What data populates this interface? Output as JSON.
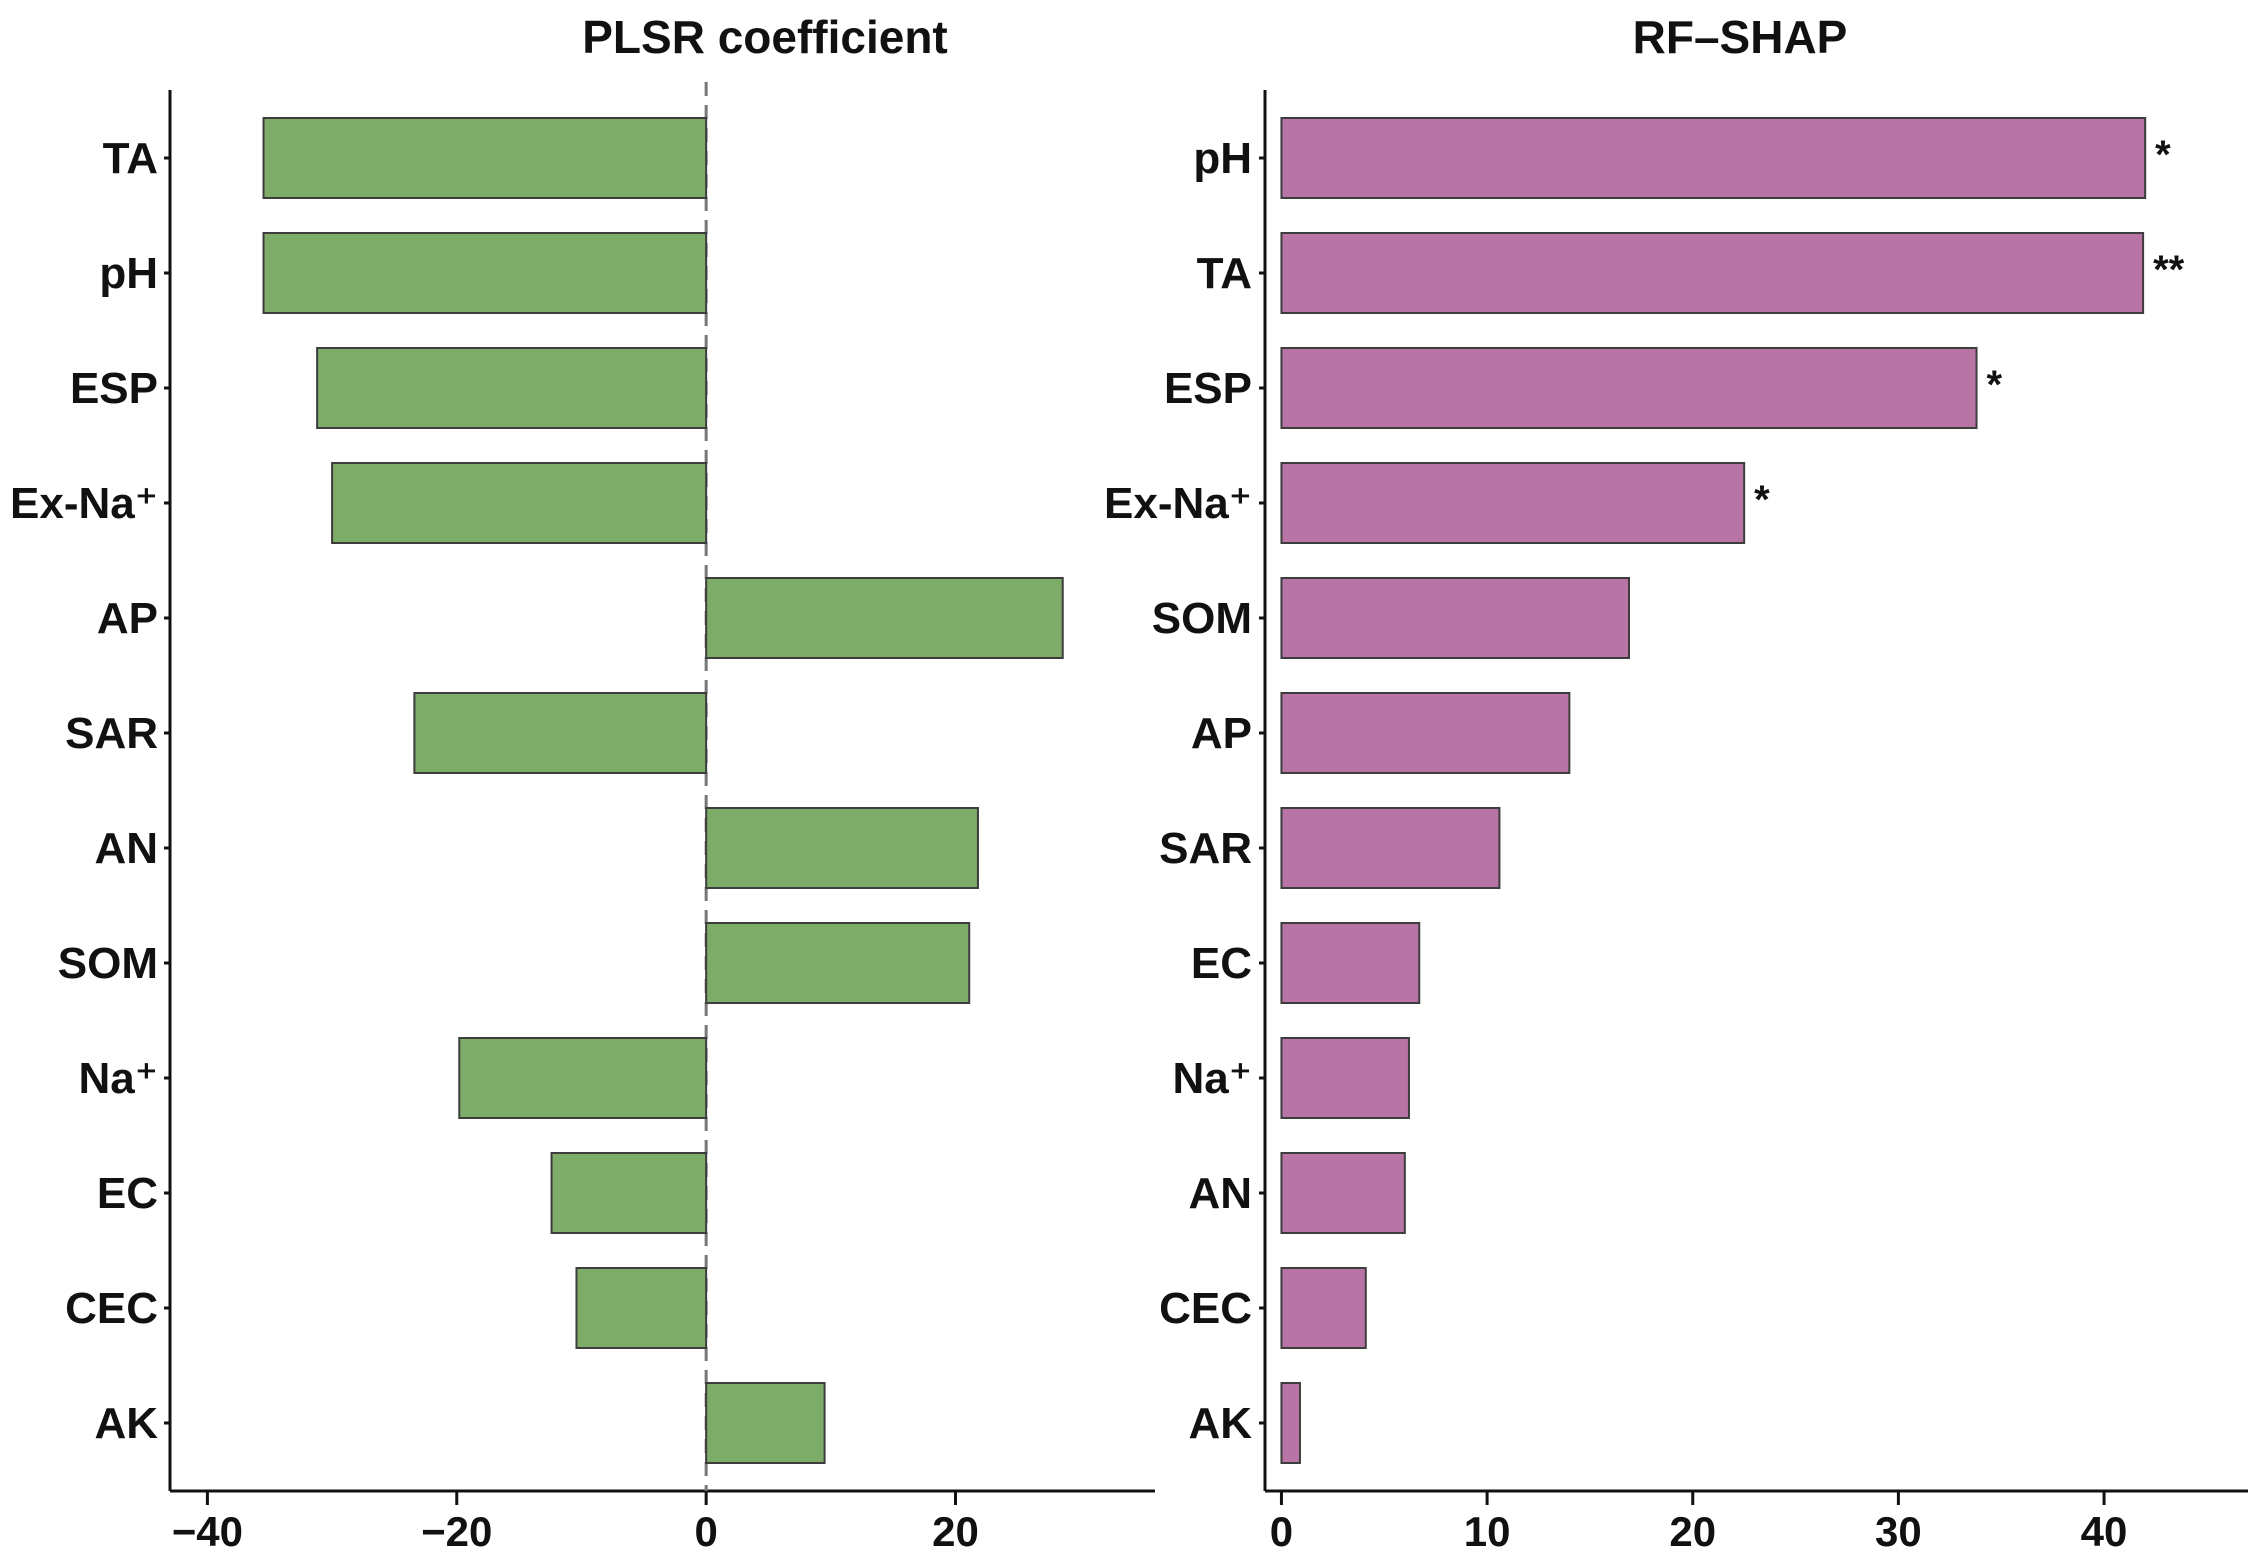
{
  "chart_data": [
    {
      "type": "bar",
      "orientation": "horizontal",
      "title": "PLSR coefficient",
      "categories": [
        "TA",
        "pH",
        "ESP",
        "Ex-Na⁺",
        "AP",
        "SAR",
        "AN",
        "SOM",
        "Na⁺",
        "EC",
        "CEC",
        "AK"
      ],
      "values": [
        -35.5,
        -35.5,
        -31.2,
        -30.0,
        28.6,
        -23.4,
        21.8,
        21.1,
        -19.8,
        -12.4,
        -10.4,
        9.5
      ],
      "xlim": [
        -43,
        36
      ],
      "xticks": [
        -40,
        -20,
        0,
        20
      ],
      "xtick_labels": [
        "−40",
        "−20",
        "0",
        "20"
      ],
      "reference_line": 0,
      "color": "#7dac68"
    },
    {
      "type": "bar",
      "orientation": "horizontal",
      "title": "RF–SHAP",
      "categories": [
        "pH",
        "TA",
        "ESP",
        "Ex-Na⁺",
        "SOM",
        "AP",
        "SAR",
        "EC",
        "Na⁺",
        "AN",
        "CEC",
        "AK"
      ],
      "values": [
        42.0,
        41.9,
        33.8,
        22.5,
        16.9,
        14.0,
        10.6,
        6.7,
        6.2,
        6.0,
        4.1,
        0.9
      ],
      "significance": [
        "*",
        "**",
        "*",
        "*",
        "",
        "",
        "",
        "",
        "",
        "",
        "",
        ""
      ],
      "xlim": [
        -0.8,
        47
      ],
      "xticks": [
        0,
        10,
        20,
        30,
        40
      ],
      "xtick_labels": [
        "0",
        "10",
        "20",
        "30",
        "40"
      ],
      "color": "#b874a4"
    }
  ]
}
